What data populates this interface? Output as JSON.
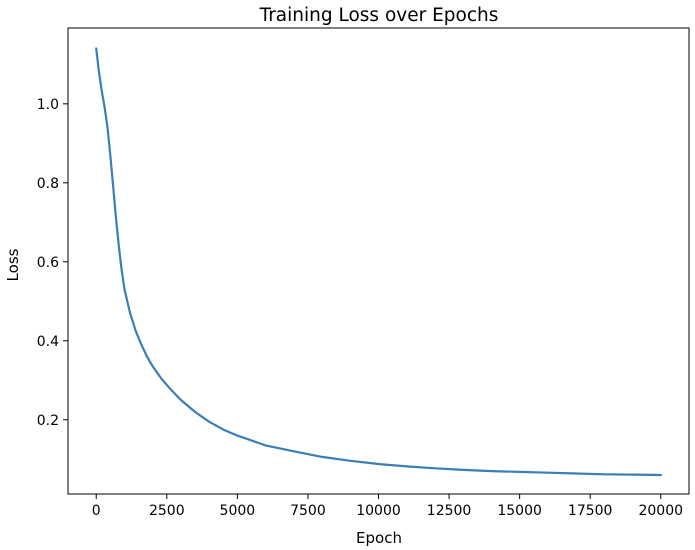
{
  "chart_data": {
    "type": "line",
    "title": "Training Loss over Epochs",
    "xlabel": "Epoch",
    "ylabel": "Loss",
    "xlim": [
      -1000,
      21000
    ],
    "ylim": [
      0.012,
      1.192
    ],
    "x_ticks": [
      0,
      2500,
      5000,
      7500,
      10000,
      12500,
      15000,
      17500,
      20000
    ],
    "y_ticks": [
      0.2,
      0.4,
      0.6,
      0.8,
      1.0
    ],
    "x_tick_labels": [
      "0",
      "2500",
      "5000",
      "7500",
      "10000",
      "12500",
      "15000",
      "17500",
      "20000"
    ],
    "y_tick_labels": [
      "0.2",
      "0.4",
      "0.6",
      "0.8",
      "1.0"
    ],
    "grid": false,
    "legend": "none",
    "series": [
      {
        "color": "#3a7eb6",
        "x": [
          0,
          100,
          200,
          300,
          400,
          500,
          600,
          700,
          800,
          900,
          1000,
          1200,
          1400,
          1600,
          1800,
          2000,
          2300,
          2600,
          3000,
          3500,
          4000,
          4500,
          5000,
          6000,
          7000,
          8000,
          9000,
          10000,
          11000,
          12000,
          13000,
          14000,
          15000,
          16000,
          17000,
          18000,
          19000,
          20000
        ],
        "y": [
          1.14,
          1.08,
          1.03,
          0.99,
          0.94,
          0.87,
          0.79,
          0.71,
          0.64,
          0.58,
          0.53,
          0.47,
          0.425,
          0.39,
          0.36,
          0.335,
          0.305,
          0.28,
          0.25,
          0.22,
          0.195,
          0.175,
          0.16,
          0.135,
          0.12,
          0.106,
          0.096,
          0.088,
          0.082,
          0.077,
          0.073,
          0.07,
          0.068,
          0.066,
          0.064,
          0.062,
          0.061,
          0.06
        ]
      }
    ]
  }
}
